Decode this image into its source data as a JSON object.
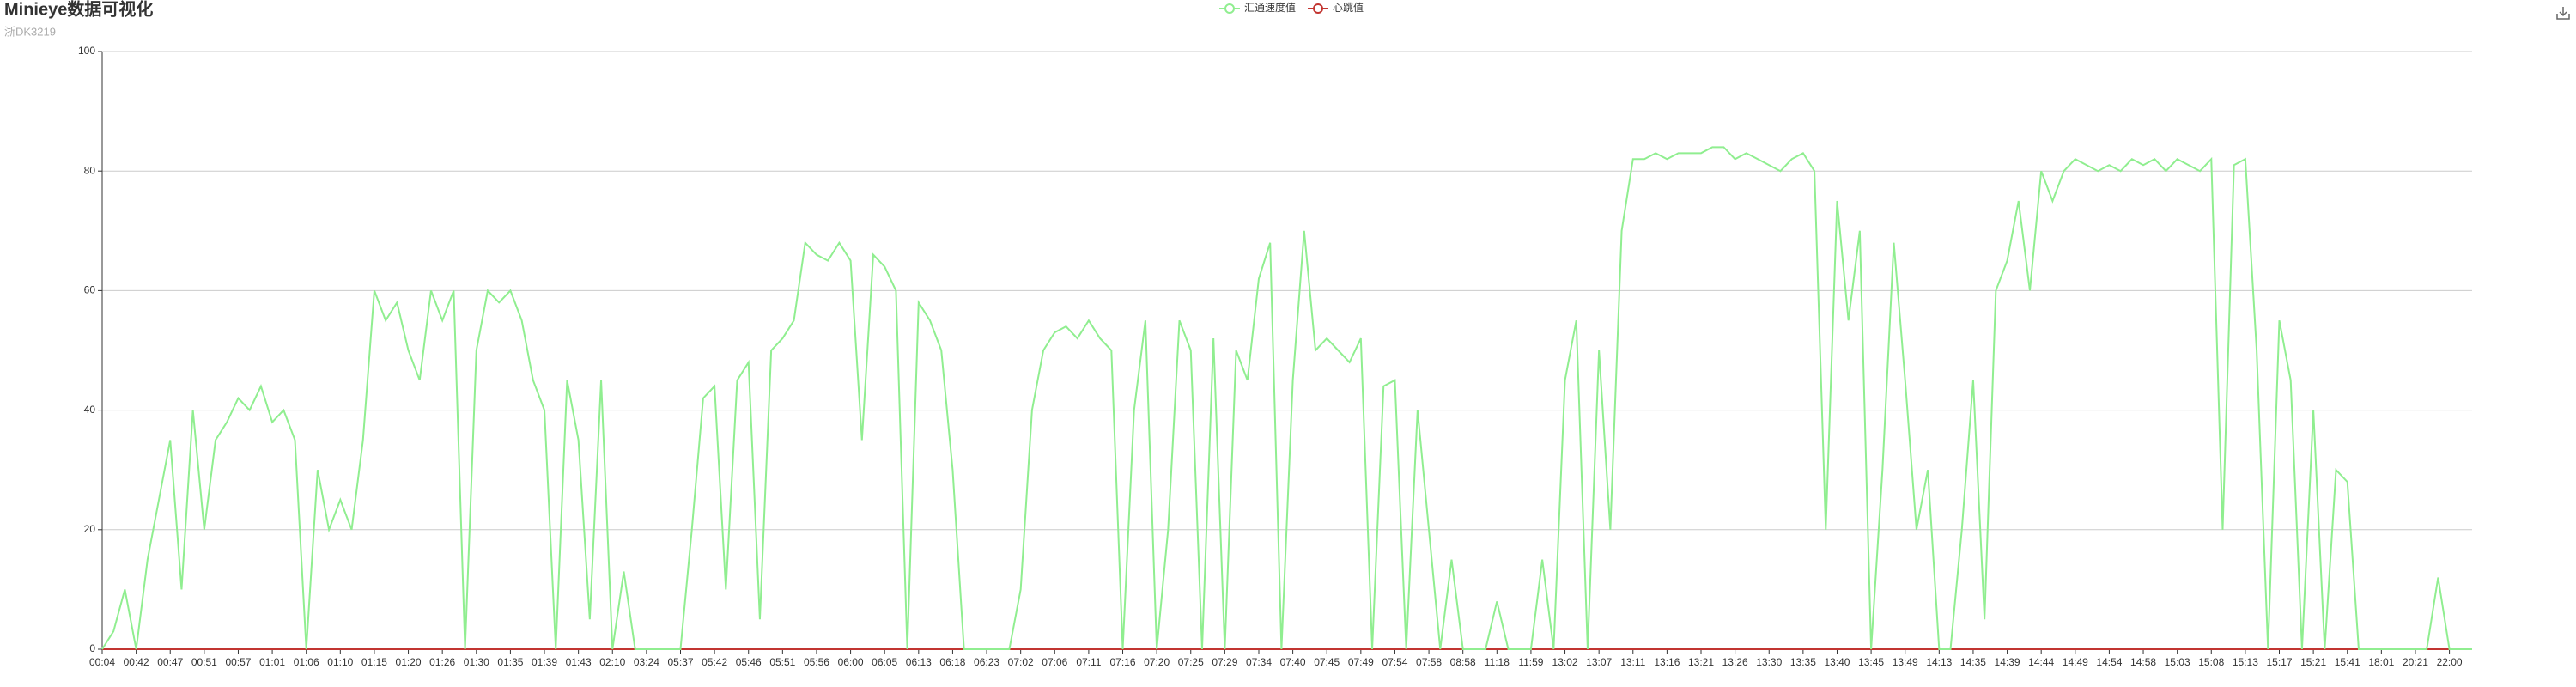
{
  "chart_data": {
    "type": "line",
    "title": "Minieye数据可视化",
    "subtitle": "浙DK3219",
    "categories": [
      "00:04",
      null,
      null,
      "00:42",
      null,
      null,
      "00:47",
      null,
      null,
      "00:51",
      null,
      null,
      "00:57",
      null,
      null,
      "01:01",
      null,
      null,
      "01:06",
      null,
      null,
      "01:10",
      null,
      null,
      "01:15",
      null,
      null,
      "01:20",
      null,
      null,
      "01:26",
      null,
      null,
      "01:30",
      null,
      null,
      "01:35",
      null,
      null,
      "01:39",
      null,
      null,
      "01:43",
      null,
      null,
      "02:10",
      null,
      null,
      "03:24",
      null,
      null,
      "05:37",
      null,
      null,
      "05:42",
      null,
      null,
      "05:46",
      null,
      null,
      "05:51",
      null,
      null,
      "05:56",
      null,
      null,
      "06:00",
      null,
      null,
      "06:05",
      null,
      null,
      "06:13",
      null,
      null,
      "06:18",
      null,
      null,
      "06:23",
      null,
      null,
      "07:02",
      null,
      null,
      "07:06",
      null,
      null,
      "07:11",
      null,
      null,
      "07:16",
      null,
      null,
      "07:20",
      null,
      null,
      "07:25",
      null,
      null,
      "07:29",
      null,
      null,
      "07:34",
      null,
      null,
      "07:40",
      null,
      null,
      "07:45",
      null,
      null,
      "07:49",
      null,
      null,
      "07:54",
      null,
      null,
      "07:58",
      null,
      null,
      "08:58",
      null,
      null,
      "11:18",
      null,
      null,
      "11:59",
      null,
      null,
      "13:02",
      null,
      null,
      "13:07",
      null,
      null,
      "13:11",
      null,
      null,
      "13:16",
      null,
      null,
      "13:21",
      null,
      null,
      "13:26",
      null,
      null,
      "13:30",
      null,
      null,
      "13:35",
      null,
      null,
      "13:40",
      null,
      null,
      "13:45",
      null,
      null,
      "13:49",
      null,
      null,
      "14:13",
      null,
      null,
      "14:35",
      null,
      null,
      "14:39",
      null,
      null,
      "14:44",
      null,
      null,
      "14:49",
      null,
      null,
      "14:54",
      null,
      null,
      "14:58",
      null,
      null,
      "15:03",
      null,
      null,
      "15:08",
      null,
      null,
      "15:13",
      null,
      null,
      "15:17",
      null,
      null,
      "15:21",
      null,
      null,
      "15:41",
      null,
      null,
      "18:01",
      null,
      null,
      "20:21",
      null,
      null,
      "22:00",
      null,
      null
    ],
    "series": [
      {
        "name": "汇通速度值",
        "color": "#90ee90",
        "values": [
          0,
          3,
          10,
          0,
          15,
          25,
          35,
          10,
          40,
          20,
          35,
          38,
          42,
          40,
          44,
          38,
          40,
          35,
          0,
          30,
          20,
          25,
          20,
          35,
          60,
          55,
          58,
          50,
          45,
          60,
          55,
          60,
          0,
          50,
          60,
          58,
          60,
          55,
          45,
          40,
          0,
          45,
          35,
          5,
          45,
          0,
          13,
          0,
          0,
          0,
          0,
          0,
          20,
          42,
          44,
          10,
          45,
          48,
          5,
          50,
          52,
          55,
          68,
          66,
          65,
          68,
          65,
          35,
          66,
          64,
          60,
          0,
          58,
          55,
          50,
          30,
          0,
          0,
          0,
          0,
          0,
          10,
          40,
          50,
          53,
          54,
          52,
          55,
          52,
          50,
          0,
          40,
          55,
          0,
          20,
          55,
          50,
          0,
          52,
          0,
          50,
          45,
          62,
          68,
          0,
          45,
          70,
          50,
          52,
          50,
          48,
          52,
          0,
          44,
          45,
          0,
          40,
          20,
          0,
          15,
          0,
          0,
          0,
          8,
          0,
          0,
          0,
          15,
          0,
          45,
          55,
          0,
          50,
          20,
          70,
          82,
          82,
          83,
          82,
          83,
          83,
          83,
          84,
          84,
          82,
          83,
          82,
          81,
          80,
          82,
          83,
          80,
          20,
          75,
          55,
          70,
          0,
          30,
          68,
          45,
          20,
          30,
          0,
          0,
          20,
          45,
          5,
          60,
          65,
          75,
          60,
          80,
          75,
          80,
          82,
          81,
          80,
          81,
          80,
          82,
          81,
          82,
          80,
          82,
          81,
          80,
          82,
          20,
          81,
          82,
          50,
          0,
          55,
          45,
          0,
          40,
          0,
          30,
          28,
          0,
          0,
          0,
          0,
          0,
          0,
          0,
          12,
          0,
          0,
          0
        ]
      },
      {
        "name": "心跳值",
        "color": "#c23531",
        "values": [
          0,
          0,
          0,
          0,
          0,
          0,
          0,
          0,
          0,
          0,
          0,
          0,
          0,
          0,
          0,
          0,
          0,
          0,
          0,
          0,
          0,
          0,
          0,
          0,
          0,
          0,
          0,
          0,
          0,
          0,
          0,
          0,
          0,
          0,
          0,
          0,
          0,
          0,
          0,
          0,
          0,
          0,
          0,
          0,
          0,
          0,
          0,
          0,
          0,
          0,
          0,
          0,
          0,
          0,
          0,
          0,
          0,
          0,
          0,
          0,
          0,
          0,
          0,
          0,
          0,
          0,
          0,
          0,
          0,
          0,
          0,
          0,
          0,
          0,
          0,
          0,
          0,
          0,
          0,
          0,
          0,
          0,
          0,
          0,
          0,
          0,
          0,
          0,
          0,
          0,
          0,
          0,
          0,
          0,
          0,
          0,
          0,
          0,
          0,
          0,
          0,
          0,
          0,
          0,
          0,
          0,
          0,
          0,
          0,
          0,
          0,
          0,
          0,
          0,
          0,
          0,
          0,
          0,
          0,
          0,
          0,
          0,
          0,
          0,
          0,
          0,
          0,
          0,
          0,
          0,
          0,
          0,
          0,
          0,
          0,
          0,
          0,
          0,
          0,
          0,
          0,
          0,
          0,
          0,
          0,
          0,
          0,
          0,
          0,
          0,
          0,
          0,
          0,
          0,
          0,
          0,
          0,
          0,
          0,
          0,
          0,
          0,
          0,
          0,
          0,
          0,
          0,
          0,
          0,
          0,
          0,
          0,
          0,
          0,
          0,
          0,
          0,
          0,
          0,
          0,
          0,
          0,
          0,
          0,
          0,
          0,
          0,
          0,
          0,
          0,
          0,
          0,
          0,
          0,
          0,
          0,
          0,
          0,
          0,
          0,
          0,
          0,
          0,
          0,
          0,
          0,
          0,
          0,
          0,
          0
        ]
      }
    ],
    "ylim": [
      0,
      100
    ],
    "yticks": [
      0,
      20,
      40,
      60,
      80,
      100
    ],
    "grid": true
  }
}
